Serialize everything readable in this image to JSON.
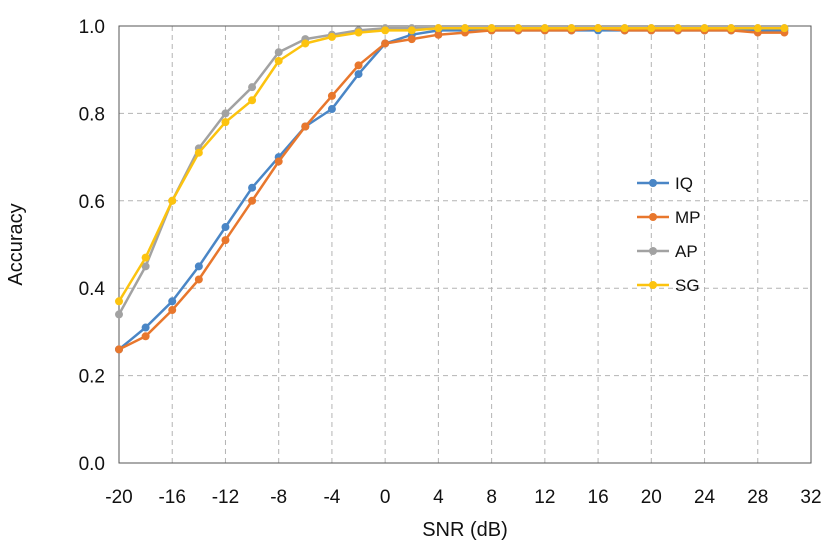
{
  "chart_data": {
    "type": "line",
    "title": "",
    "xlabel": "SNR (dB)",
    "ylabel": "Accuracy",
    "xlim": [
      -20,
      32
    ],
    "ylim": [
      0.0,
      1.0
    ],
    "x_ticks": [
      "-20",
      "-16",
      "-12",
      "-8",
      "-4",
      "0",
      "4",
      "8",
      "12",
      "16",
      "20",
      "24",
      "28",
      "32"
    ],
    "y_ticks": [
      "0.0",
      "0.2",
      "0.4",
      "0.6",
      "0.8",
      "1.0"
    ],
    "grid": true,
    "legend_position": "right",
    "x": [
      -20,
      -18,
      -16,
      -14,
      -12,
      -10,
      -8,
      -6,
      -4,
      -2,
      0,
      2,
      4,
      6,
      8,
      10,
      12,
      14,
      16,
      18,
      20,
      22,
      24,
      26,
      28,
      30
    ],
    "series": [
      {
        "name": "IQ",
        "color": "#4a86c6",
        "values": [
          0.26,
          0.31,
          0.37,
          0.45,
          0.54,
          0.63,
          0.7,
          0.77,
          0.81,
          0.89,
          0.96,
          0.98,
          0.99,
          0.99,
          0.99,
          0.99,
          0.99,
          0.99,
          0.99,
          0.99,
          0.99,
          0.99,
          0.99,
          0.99,
          0.99,
          0.99
        ]
      },
      {
        "name": "MP",
        "color": "#e8772d",
        "values": [
          0.26,
          0.29,
          0.35,
          0.42,
          0.51,
          0.6,
          0.69,
          0.77,
          0.84,
          0.91,
          0.96,
          0.97,
          0.98,
          0.985,
          0.99,
          0.99,
          0.99,
          0.99,
          0.995,
          0.99,
          0.99,
          0.99,
          0.99,
          0.99,
          0.985,
          0.985
        ]
      },
      {
        "name": "AP",
        "color": "#a2a2a2",
        "values": [
          0.34,
          0.45,
          0.6,
          0.72,
          0.8,
          0.86,
          0.94,
          0.97,
          0.98,
          0.99,
          0.995,
          0.995,
          0.995,
          0.995,
          0.995,
          0.995,
          0.995,
          0.995,
          0.995,
          0.995,
          0.995,
          0.995,
          0.995,
          0.995,
          0.995,
          0.995
        ]
      },
      {
        "name": "SG",
        "color": "#fcc30f",
        "values": [
          0.37,
          0.47,
          0.6,
          0.71,
          0.78,
          0.83,
          0.92,
          0.96,
          0.975,
          0.985,
          0.99,
          0.99,
          0.995,
          0.995,
          0.995,
          0.995,
          0.995,
          0.995,
          0.995,
          0.995,
          0.995,
          0.995,
          0.995,
          0.995,
          0.995,
          0.995
        ]
      }
    ]
  }
}
